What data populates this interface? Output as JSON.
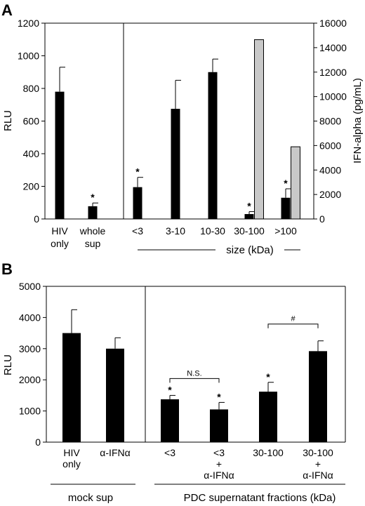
{
  "chart_data": [
    {
      "panel_label": "A",
      "type": "bar",
      "ylabel": "RLU",
      "ylabel2": "IFN-alpha (pg/mL)",
      "ylim": [
        0,
        1200
      ],
      "ylim2": [
        0,
        16000
      ],
      "yticks": [
        "0",
        "200",
        "400",
        "600",
        "800",
        "1000",
        "1200"
      ],
      "yticks2": [
        "0",
        "2000",
        "4000",
        "6000",
        "8000",
        "10000",
        "12000",
        "14000",
        "16000"
      ],
      "categories": [
        {
          "lines": [
            "HIV",
            "only"
          ]
        },
        {
          "lines": [
            "whole",
            "sup"
          ]
        },
        {
          "lines": [
            "<3"
          ]
        },
        {
          "lines": [
            "3-10"
          ]
        },
        {
          "lines": [
            "10-30"
          ]
        },
        {
          "lines": [
            "30-100"
          ]
        },
        {
          "lines": [
            ">100"
          ]
        }
      ],
      "series": [
        {
          "axis": "left",
          "values": [
            780,
            78,
            195,
            675,
            900,
            30,
            130
          ],
          "errors": [
            150,
            20,
            60,
            175,
            80,
            15,
            55
          ]
        },
        {
          "axis": "right",
          "values": [
            null,
            null,
            null,
            null,
            null,
            14650,
            5900
          ]
        }
      ],
      "significance": [
        "",
        "*",
        "*",
        "",
        "",
        "*",
        "*"
      ],
      "group_label": "size (kDa)"
    },
    {
      "panel_label": "B",
      "type": "bar",
      "ylabel": "RLU",
      "ylim": [
        0,
        5000
      ],
      "yticks": [
        "0",
        "1000",
        "2000",
        "3000",
        "4000",
        "5000"
      ],
      "categories": [
        {
          "lines": [
            "HIV",
            "only"
          ]
        },
        {
          "lines": [
            "α-IFNα"
          ]
        },
        {
          "lines": [
            "<3"
          ]
        },
        {
          "lines": [
            "<3",
            "+",
            "α-IFNα"
          ]
        },
        {
          "lines": [
            "30-100"
          ]
        },
        {
          "lines": [
            "30-100",
            "+",
            "α-IFNα"
          ]
        }
      ],
      "series": [
        {
          "values": [
            3500,
            3000,
            1375,
            1050,
            1620,
            2920
          ],
          "errors": [
            750,
            350,
            125,
            225,
            300,
            330
          ]
        }
      ],
      "significance": [
        "",
        "",
        "*",
        "*",
        "*",
        ""
      ],
      "comparisons": [
        {
          "from": 2,
          "to": 3,
          "label": "N.S."
        },
        {
          "from": 4,
          "to": 5,
          "label": "#"
        }
      ],
      "group_labels": [
        "mock sup",
        "PDC supernatant fractions (kDa)"
      ]
    }
  ]
}
